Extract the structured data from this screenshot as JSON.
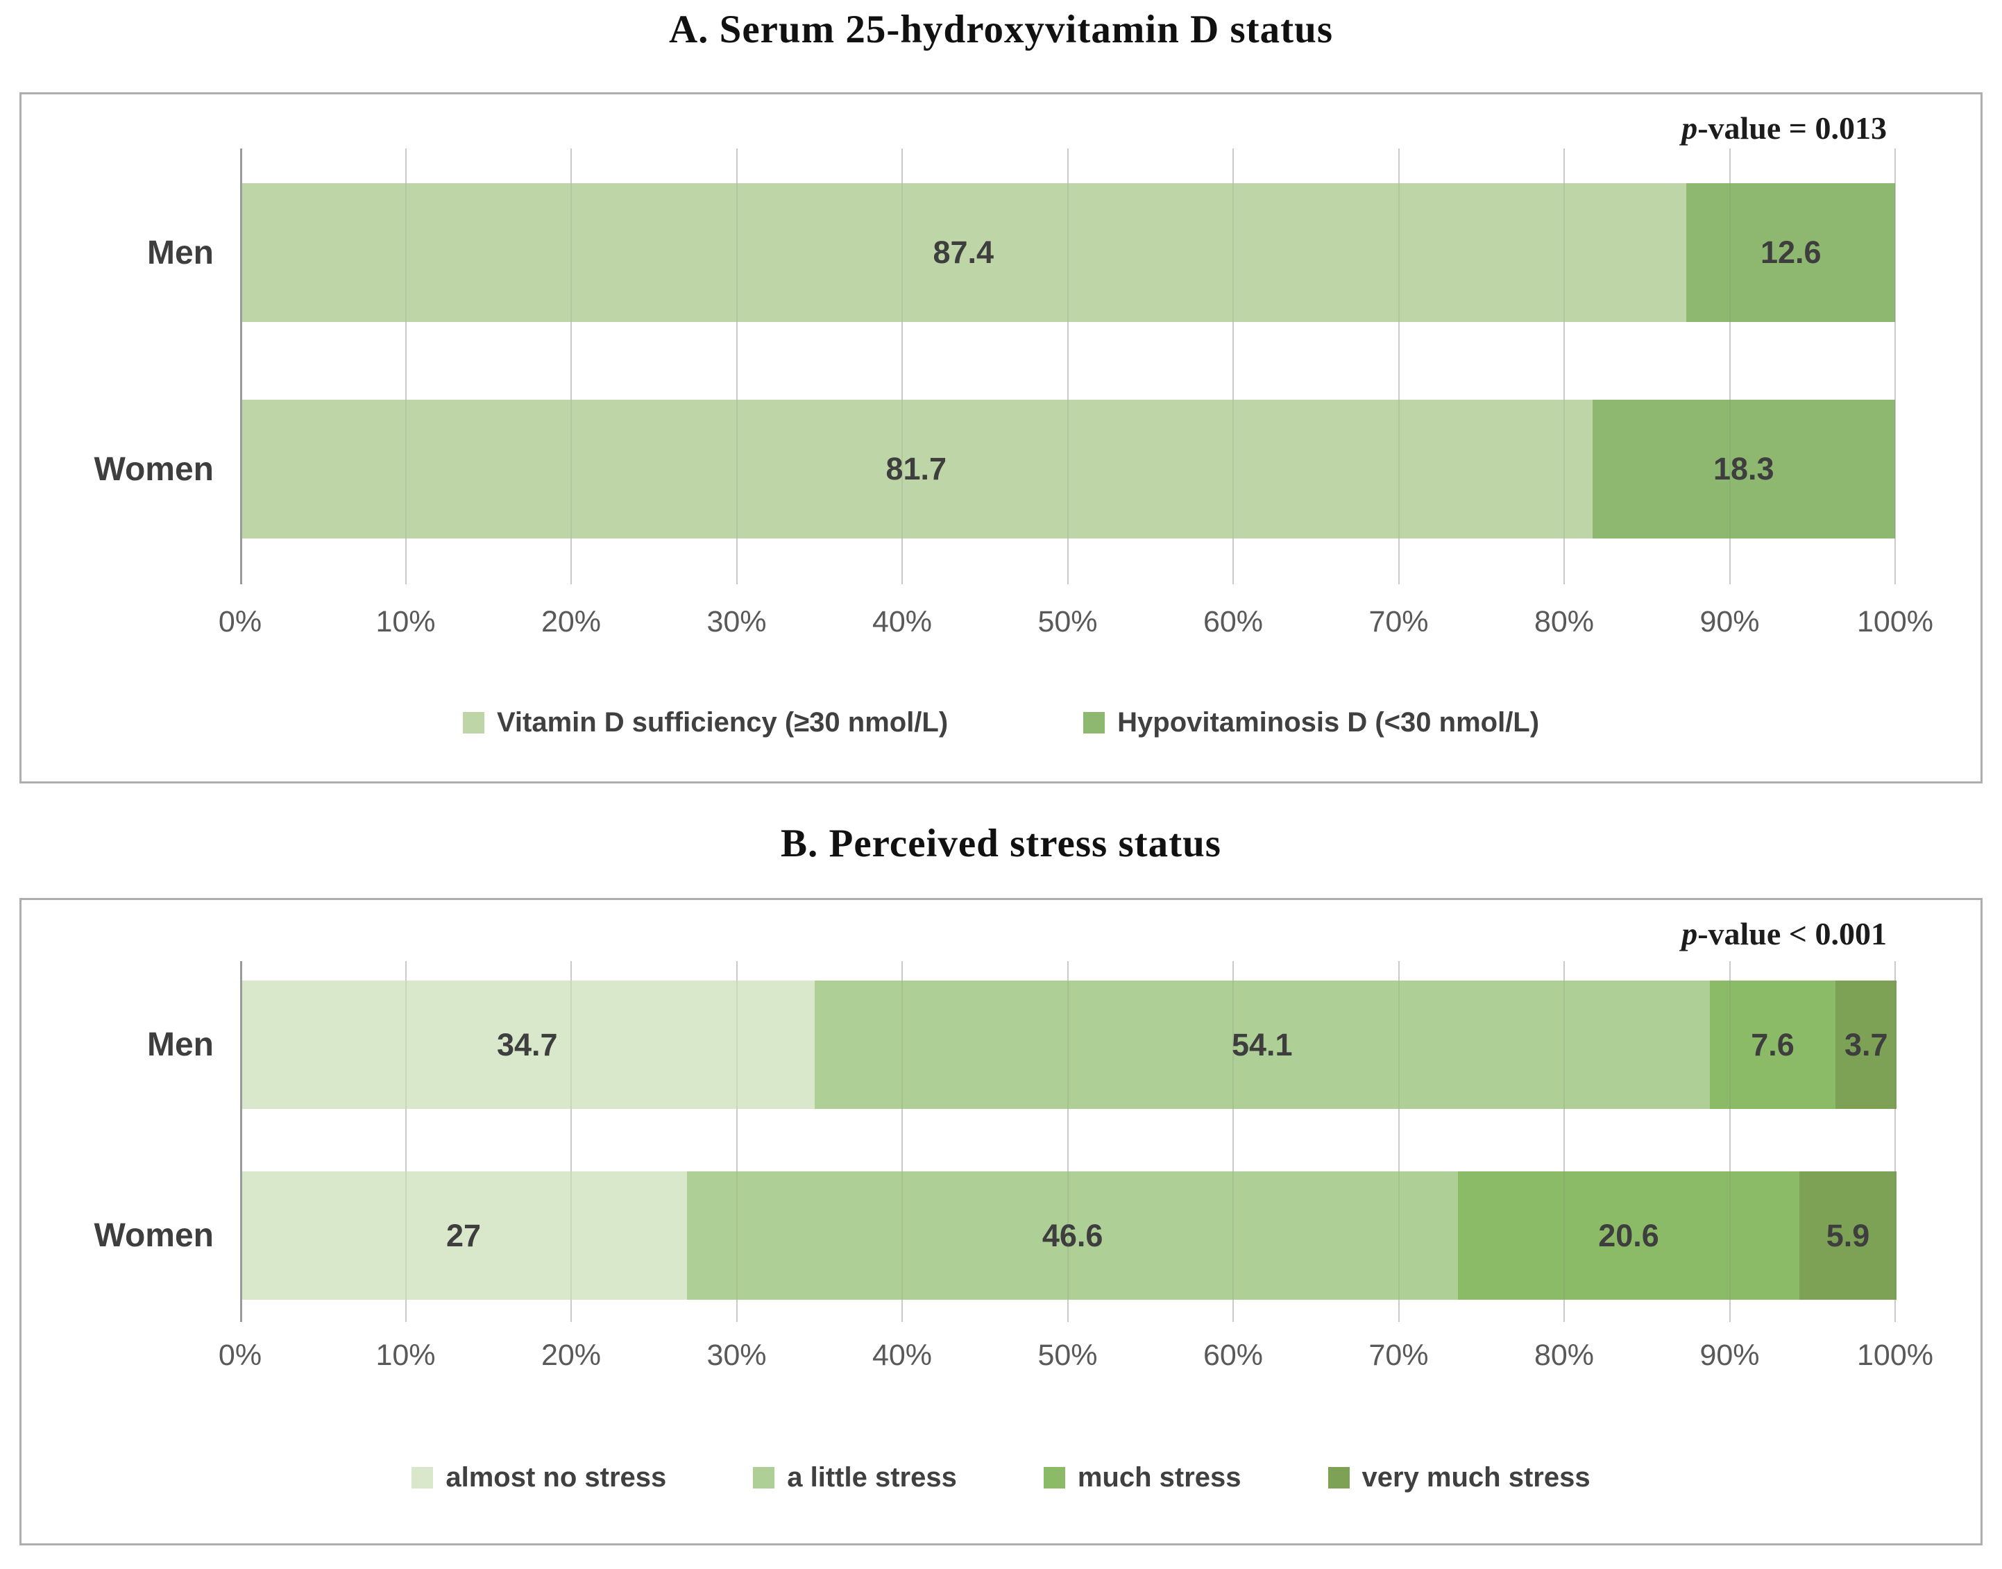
{
  "palette": {
    "panel_border": "#aeaeae",
    "gridline": "#d9d9d9",
    "axis_line": "#9a9a9a",
    "data_label": "#3e3e3e",
    "tick_label": "#595959",
    "legend_label": "#404040",
    "title_color": "#111111"
  },
  "charts": [
    {
      "title": "A. Serum 25-hydroxyvitamin D status",
      "p_label": {
        "italic": "p",
        "rest": "-value = 0.013"
      },
      "chart_data": {
        "type": "bar",
        "orientation": "horizontal",
        "stacked": true,
        "categories": [
          "Men",
          "Women"
        ],
        "series": [
          {
            "name": "Vitamin D sufficiency (≥30 nmol/L)",
            "color": "#bed6a7",
            "values": [
              87.4,
              81.7
            ]
          },
          {
            "name": "Hypovitaminosis D (<30 nmol/L)",
            "color": "#8eb870",
            "values": [
              12.6,
              18.3
            ]
          }
        ],
        "x_ticks": [
          "0%",
          "10%",
          "20%",
          "30%",
          "40%",
          "50%",
          "60%",
          "70%",
          "80%",
          "90%",
          "100%"
        ],
        "xlim": [
          0,
          100
        ],
        "grid": true,
        "data_labels": true,
        "legend_position": "bottom"
      }
    },
    {
      "title": "B. Perceived stress status",
      "p_label": {
        "italic": "p",
        "rest": "-value < 0.001"
      },
      "chart_data": {
        "type": "bar",
        "orientation": "horizontal",
        "stacked": true,
        "categories": [
          "Men",
          "Women"
        ],
        "series": [
          {
            "name": "almost no stress",
            "color": "#d9e8ca",
            "values": [
              34.7,
              27
            ]
          },
          {
            "name": "a little stress",
            "color": "#aecf95",
            "values": [
              54.1,
              46.6
            ]
          },
          {
            "name": "much stress",
            "color": "#8cbb68",
            "values": [
              7.6,
              20.6
            ]
          },
          {
            "name": "very much stress",
            "color": "#7da255",
            "values": [
              3.7,
              5.9
            ]
          }
        ],
        "x_ticks": [
          "0%",
          "10%",
          "20%",
          "30%",
          "40%",
          "50%",
          "60%",
          "70%",
          "80%",
          "90%",
          "100%"
        ],
        "xlim": [
          0,
          100
        ],
        "grid": true,
        "data_labels": true,
        "legend_position": "bottom"
      }
    }
  ]
}
